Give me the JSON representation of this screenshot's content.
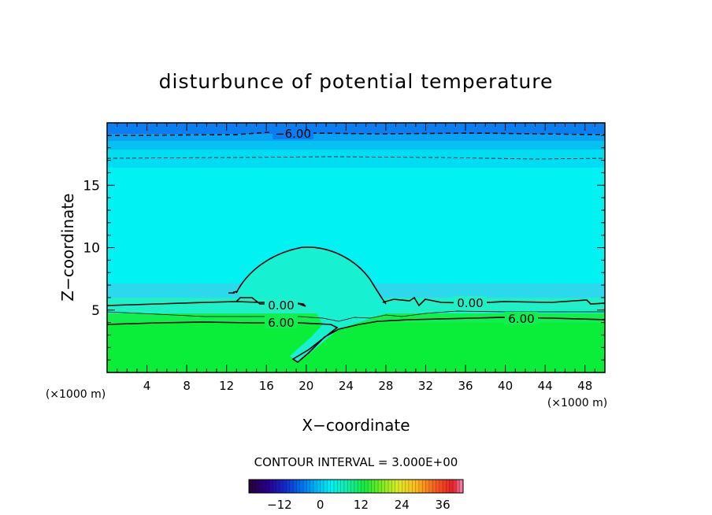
{
  "chart_data": {
    "type": "heatmap",
    "title": "disturbunce of potential temperature",
    "xlabel": "X−coordinate",
    "ylabel": "Z−coordinate",
    "x_unit": "(×1000 m)",
    "y_unit": "(×1000 m)",
    "xlim": [
      0,
      50
    ],
    "ylim": [
      0,
      20
    ],
    "x_ticks": [
      4,
      8,
      12,
      16,
      20,
      24,
      28,
      32,
      36,
      40,
      44,
      48
    ],
    "y_ticks": [
      5,
      10,
      15
    ],
    "contour_labels": [
      {
        "text": "−6.00",
        "x": 18.8,
        "z": 19.1
      },
      {
        "text": "0.00",
        "x": 17.6,
        "z": 5.4
      },
      {
        "text": "6.00",
        "x": 17.6,
        "z": 4.0
      },
      {
        "text": "0.00",
        "x": 36.5,
        "z": 5.5
      },
      {
        "text": "6.00",
        "x": 41.5,
        "z": 4.3
      }
    ],
    "contour_interval_text": "CONTOUR INTERVAL = 3.000E+00",
    "colorbar": {
      "range": [
        -21,
        42
      ],
      "tick_values": [
        -12,
        0,
        12,
        24,
        36
      ],
      "tick_labels": [
        "−12",
        "0",
        "12",
        "24",
        "36"
      ]
    },
    "colors": {
      "top_band": "#0a7ff2",
      "upper_layer": "#00f2f2",
      "mid_layer": "#20f0c8",
      "lower_layer": "#10ee50",
      "bottom_layer": "#0aee3a"
    }
  }
}
